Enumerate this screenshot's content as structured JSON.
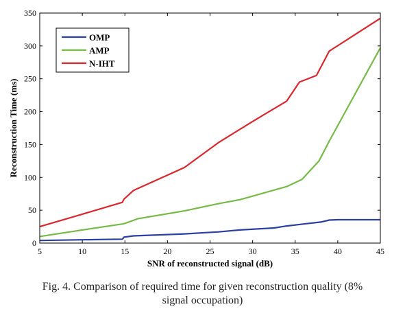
{
  "chart_data": {
    "type": "line",
    "title": "",
    "xlabel": "SNR of reconstructed signal (dB)",
    "ylabel": "Reconstruction Time (ms)",
    "xlim": [
      5,
      45
    ],
    "ylim": [
      0,
      350
    ],
    "xticks": [
      5,
      10,
      15,
      20,
      25,
      30,
      35,
      40,
      45
    ],
    "yticks": [
      0,
      50,
      100,
      150,
      200,
      250,
      300,
      350
    ],
    "grid": false,
    "legend_position": "top-left",
    "series": [
      {
        "name": "OMP",
        "color": "#2b3fa0",
        "points": [
          [
            5,
            4
          ],
          [
            10,
            5
          ],
          [
            14.7,
            6
          ],
          [
            14.9,
            9
          ],
          [
            16,
            11
          ],
          [
            20,
            13
          ],
          [
            22,
            14
          ],
          [
            26,
            17
          ],
          [
            28.5,
            20
          ],
          [
            32.5,
            23
          ],
          [
            34,
            26
          ],
          [
            36,
            29
          ],
          [
            38,
            32
          ],
          [
            39,
            35
          ],
          [
            40,
            35.5
          ],
          [
            45,
            35.5
          ]
        ]
      },
      {
        "name": "AMP",
        "color": "#76b947",
        "points": [
          [
            5,
            10
          ],
          [
            10,
            20
          ],
          [
            14.7,
            29
          ],
          [
            15,
            30
          ],
          [
            16.5,
            37
          ],
          [
            22,
            49
          ],
          [
            26,
            60
          ],
          [
            28.5,
            66
          ],
          [
            34,
            86
          ],
          [
            35.8,
            97
          ],
          [
            37.8,
            125
          ],
          [
            39,
            155
          ],
          [
            45,
            297
          ]
        ]
      },
      {
        "name": "N-IHT",
        "color": "#d9272e",
        "points": [
          [
            5,
            25
          ],
          [
            10,
            44
          ],
          [
            14.7,
            62
          ],
          [
            14.9,
            67
          ],
          [
            16,
            80
          ],
          [
            22,
            115
          ],
          [
            26,
            153
          ],
          [
            30,
            185
          ],
          [
            34,
            216
          ],
          [
            35.5,
            245
          ],
          [
            37.5,
            255
          ],
          [
            39,
            292
          ],
          [
            45,
            342
          ]
        ]
      }
    ]
  },
  "caption": {
    "line1": "Fig. 4. Comparison of required time for given reconstruction quality (8%",
    "line2": "signal occupation)"
  }
}
